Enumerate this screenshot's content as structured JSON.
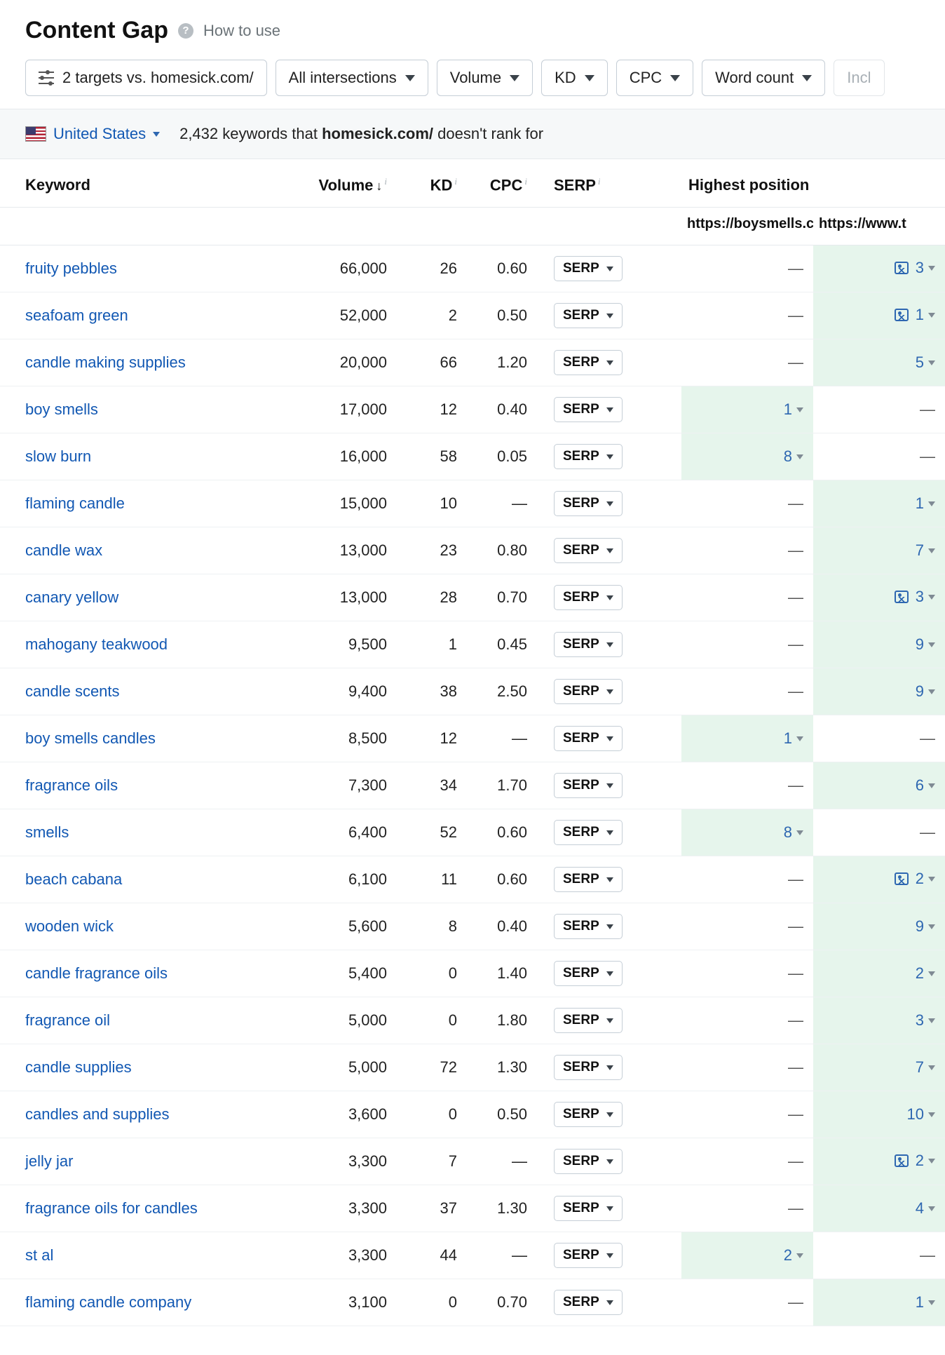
{
  "header": {
    "title": "Content Gap",
    "how_to_use": "How to use"
  },
  "filters": {
    "targets": "2 targets vs. homesick.com/",
    "intersections": "All intersections",
    "volume": "Volume",
    "kd": "KD",
    "cpc": "CPC",
    "word_count": "Word count",
    "include_placeholder": "Incl"
  },
  "country_bar": {
    "country": "United States",
    "count": "2,432",
    "mid_text": " keywords that ",
    "domain": "homesick.com/",
    "tail_text": " doesn't rank for"
  },
  "columns": {
    "keyword": "Keyword",
    "volume": "Volume",
    "kd": "KD",
    "cpc": "CPC",
    "serp": "SERP",
    "highest": "Highest position",
    "comp1": "https://boysmells.c",
    "comp2": "https://www.t"
  },
  "serp_label": "SERP",
  "rows": [
    {
      "kw": "fruity pebbles",
      "vol": "66,000",
      "kd": "26",
      "cpc": "0.60",
      "p1": null,
      "p2": "3",
      "p2_img": true
    },
    {
      "kw": "seafoam green",
      "vol": "52,000",
      "kd": "2",
      "cpc": "0.50",
      "p1": null,
      "p2": "1",
      "p2_img": true
    },
    {
      "kw": "candle making supplies",
      "vol": "20,000",
      "kd": "66",
      "cpc": "1.20",
      "p1": null,
      "p2": "5",
      "p2_img": false
    },
    {
      "kw": "boy smells",
      "vol": "17,000",
      "kd": "12",
      "cpc": "0.40",
      "p1": "1",
      "p2": null,
      "p2_img": false
    },
    {
      "kw": "slow burn",
      "vol": "16,000",
      "kd": "58",
      "cpc": "0.05",
      "p1": "8",
      "p2": null,
      "p2_img": false
    },
    {
      "kw": "flaming candle",
      "vol": "15,000",
      "kd": "10",
      "cpc": "—",
      "p1": null,
      "p2": "1",
      "p2_img": false
    },
    {
      "kw": "candle wax",
      "vol": "13,000",
      "kd": "23",
      "cpc": "0.80",
      "p1": null,
      "p2": "7",
      "p2_img": false
    },
    {
      "kw": "canary yellow",
      "vol": "13,000",
      "kd": "28",
      "cpc": "0.70",
      "p1": null,
      "p2": "3",
      "p2_img": true
    },
    {
      "kw": "mahogany teakwood",
      "vol": "9,500",
      "kd": "1",
      "cpc": "0.45",
      "p1": null,
      "p2": "9",
      "p2_img": false
    },
    {
      "kw": "candle scents",
      "vol": "9,400",
      "kd": "38",
      "cpc": "2.50",
      "p1": null,
      "p2": "9",
      "p2_img": false
    },
    {
      "kw": "boy smells candles",
      "vol": "8,500",
      "kd": "12",
      "cpc": "—",
      "p1": "1",
      "p2": null,
      "p2_img": false
    },
    {
      "kw": "fragrance oils",
      "vol": "7,300",
      "kd": "34",
      "cpc": "1.70",
      "p1": null,
      "p2": "6",
      "p2_img": false
    },
    {
      "kw": "smells",
      "vol": "6,400",
      "kd": "52",
      "cpc": "0.60",
      "p1": "8",
      "p2": null,
      "p2_img": false
    },
    {
      "kw": "beach cabana",
      "vol": "6,100",
      "kd": "11",
      "cpc": "0.60",
      "p1": null,
      "p2": "2",
      "p2_img": true
    },
    {
      "kw": "wooden wick",
      "vol": "5,600",
      "kd": "8",
      "cpc": "0.40",
      "p1": null,
      "p2": "9",
      "p2_img": false
    },
    {
      "kw": "candle fragrance oils",
      "vol": "5,400",
      "kd": "0",
      "cpc": "1.40",
      "p1": null,
      "p2": "2",
      "p2_img": false
    },
    {
      "kw": "fragrance oil",
      "vol": "5,000",
      "kd": "0",
      "cpc": "1.80",
      "p1": null,
      "p2": "3",
      "p2_img": false
    },
    {
      "kw": "candle supplies",
      "vol": "5,000",
      "kd": "72",
      "cpc": "1.30",
      "p1": null,
      "p2": "7",
      "p2_img": false
    },
    {
      "kw": "candles and supplies",
      "vol": "3,600",
      "kd": "0",
      "cpc": "0.50",
      "p1": null,
      "p2": "10",
      "p2_img": false
    },
    {
      "kw": "jelly jar",
      "vol": "3,300",
      "kd": "7",
      "cpc": "—",
      "p1": null,
      "p2": "2",
      "p2_img": true
    },
    {
      "kw": "fragrance oils for candles",
      "vol": "3,300",
      "kd": "37",
      "cpc": "1.30",
      "p1": null,
      "p2": "4",
      "p2_img": false
    },
    {
      "kw": "st al",
      "vol": "3,300",
      "kd": "44",
      "cpc": "—",
      "p1": "2",
      "p2": null,
      "p2_img": false
    },
    {
      "kw": "flaming candle company",
      "vol": "3,100",
      "kd": "0",
      "cpc": "0.70",
      "p1": null,
      "p2": "1",
      "p2_img": false
    }
  ]
}
